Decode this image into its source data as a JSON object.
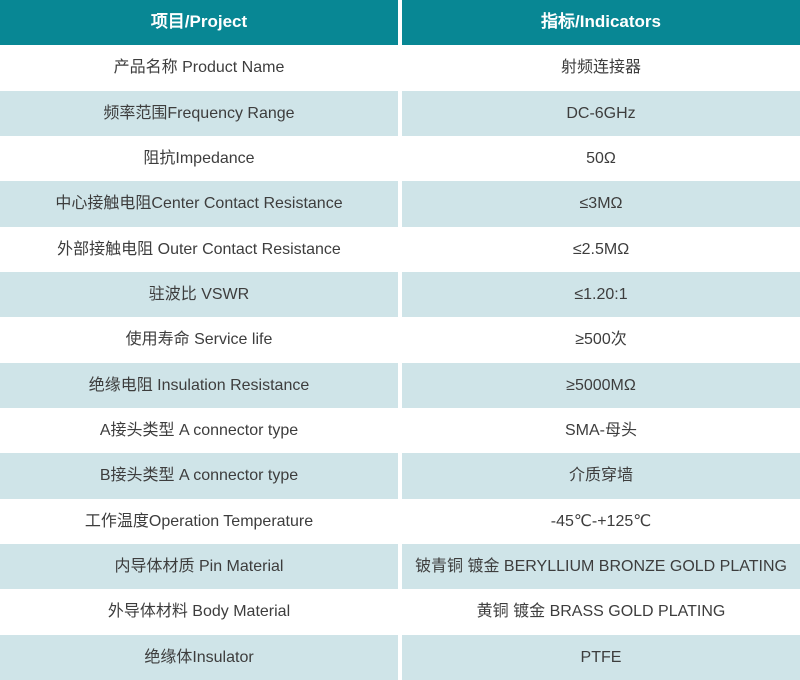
{
  "table": {
    "header": {
      "project": "项目/Project",
      "indicators": "指标/Indicators"
    },
    "rows": [
      {
        "project": "产品名称 Product Name",
        "indicator": "射频连接器"
      },
      {
        "project": "频率范围Frequency Range",
        "indicator": "DC-6GHz"
      },
      {
        "project": "阻抗Impedance",
        "indicator": "50Ω"
      },
      {
        "project": "中心接触电阻Center Contact Resistance",
        "indicator": "≤3MΩ"
      },
      {
        "project": "外部接触电阻 Outer Contact Resistance",
        "indicator": "≤2.5MΩ"
      },
      {
        "project": "驻波比 VSWR",
        "indicator": "≤1.20:1"
      },
      {
        "project": "使用寿命 Service life",
        "indicator": "≥500次"
      },
      {
        "project": "绝缘电阻 Insulation Resistance",
        "indicator": "≥5000MΩ"
      },
      {
        "project": "A接头类型 A connector type",
        "indicator": "SMA-母头"
      },
      {
        "project": "B接头类型 A connector type",
        "indicator": "介质穿墙"
      },
      {
        "project": "工作温度Operation Temperature",
        "indicator": "-45℃-+125℃"
      },
      {
        "project": "内导体材质 Pin Material",
        "indicator": "铍青铜 镀金 BERYLLIUM BRONZE GOLD PLATING"
      },
      {
        "project": "外导体材料 Body Material",
        "indicator": "黄铜 镀金 BRASS GOLD PLATING"
      },
      {
        "project": "绝缘体Insulator",
        "indicator": "PTFE"
      }
    ]
  },
  "colors": {
    "header_bg": "#088794",
    "row_bg": "#ffffff",
    "row_alt_bg": "#cfe4e8",
    "header_text": "#ffffff",
    "text": "#3d3d3d",
    "divider": "#ffffff"
  }
}
